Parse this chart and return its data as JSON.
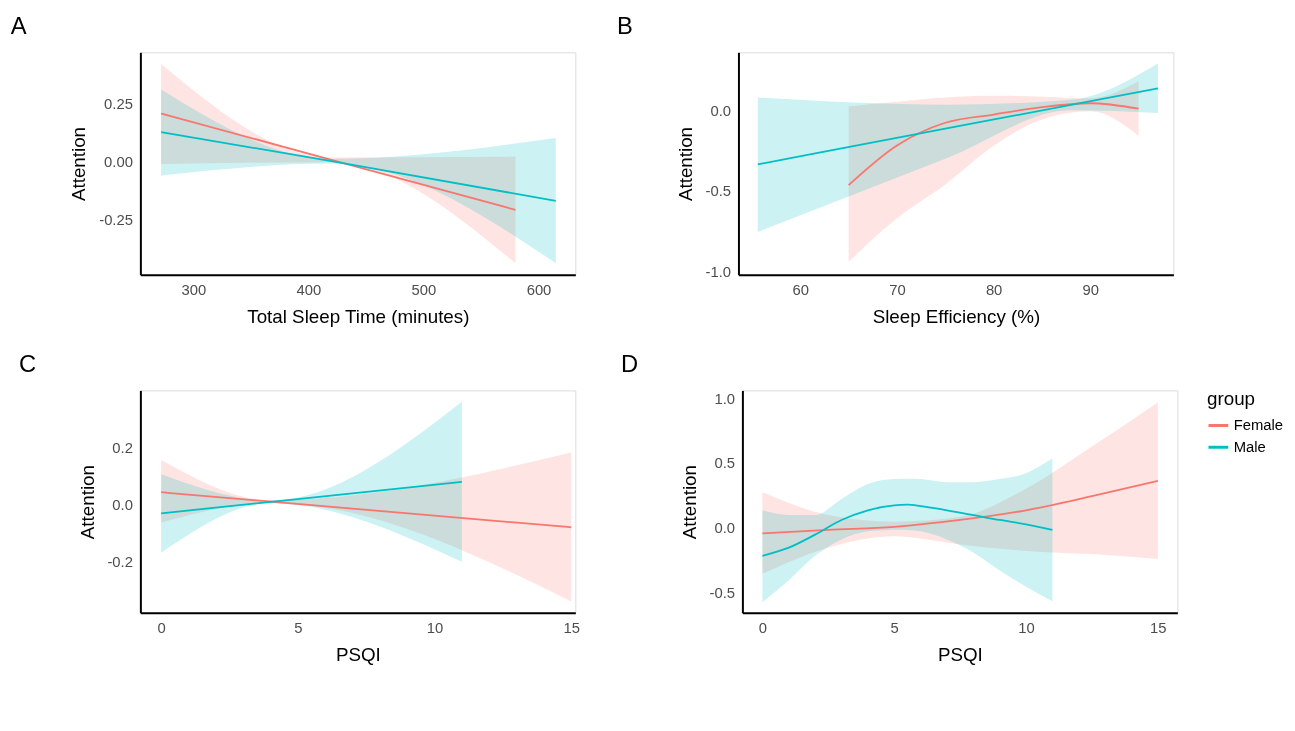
{
  "chart_data": [
    {
      "type": "line",
      "title": "A",
      "xlabel": "Total Sleep Time (minutes)",
      "ylabel": "Attention",
      "xlim": [
        254,
        632
      ],
      "xticks": [
        300,
        400,
        500,
        600
      ],
      "ylim": [
        -0.49,
        0.47
      ],
      "yticks": [
        {
          "value": -0.25,
          "label": "-0.25"
        },
        {
          "value": 0,
          "label": "0.00"
        },
        {
          "value": 0.25,
          "label": "0.25"
        }
      ],
      "grid": false,
      "legend": false,
      "series": [
        {
          "color": "#f8766d",
          "x": [
            272,
            420,
            580
          ],
          "values": [
            0.206,
            0.006,
            -0.21
          ],
          "lower": [
            -0.012,
            -0.004,
            -0.44
          ],
          "upper": [
            0.42,
            0.016,
            0.02
          ]
        },
        {
          "color": "#00bfc4",
          "x": [
            272,
            420,
            615
          ],
          "values": [
            0.126,
            0.0,
            -0.171
          ],
          "lower": [
            -0.062,
            -0.01,
            -0.44
          ],
          "upper": [
            0.31,
            0.01,
            0.1
          ]
        }
      ]
    },
    {
      "type": "line",
      "title": "B",
      "xlabel": "Sleep Efficiency (%)",
      "ylabel": "Attention",
      "xlim": [
        53.6,
        98.6
      ],
      "xticks": [
        60,
        70,
        80,
        90
      ],
      "ylim": [
        -1.02,
        0.36
      ],
      "yticks": [
        {
          "value": -1,
          "label": "-1.0"
        },
        {
          "value": -0.5,
          "label": "-0.5"
        },
        {
          "value": 0,
          "label": "0.0"
        }
      ],
      "grid": false,
      "legend": false,
      "series": [
        {
          "color": "#f8766d",
          "x": [
            65,
            70,
            75,
            80,
            85,
            90,
            95
          ],
          "values": [
            -0.464,
            -0.218,
            -0.077,
            -0.026,
            0.02,
            0.044,
            0.01
          ],
          "lower": [
            -0.94,
            -0.67,
            -0.46,
            -0.22,
            -0.056,
            -0.006,
            -0.157
          ],
          "upper": [
            0.024,
            0.054,
            0.08,
            0.09,
            0.085,
            0.075,
            0.18
          ]
        },
        {
          "color": "#00bfc4",
          "x": [
            55.6,
            75,
            88,
            97
          ],
          "values": [
            -0.335,
            -0.114,
            0.034,
            0.137
          ],
          "lower": [
            -0.754,
            -0.3,
            0.0,
            -0.016
          ],
          "upper": [
            0.079,
            0.035,
            0.065,
            0.29
          ]
        }
      ]
    },
    {
      "type": "line",
      "title": "C",
      "xlabel": "PSQI",
      "ylabel": "Attention",
      "xlim": [
        -0.76,
        15.15
      ],
      "xticks": [
        0,
        5,
        10,
        15
      ],
      "ylim": [
        -0.38,
        0.4
      ],
      "yticks": [
        {
          "value": -0.2,
          "label": "-0.2"
        },
        {
          "value": 0,
          "label": "0.0"
        },
        {
          "value": 0.2,
          "label": "0.2"
        }
      ],
      "grid": false,
      "legend": false,
      "series": [
        {
          "color": "#f8766d",
          "x": [
            0,
            4,
            15
          ],
          "values": [
            0.043,
            0.01,
            -0.08
          ],
          "lower": [
            -0.063,
            0.005,
            -0.34
          ],
          "upper": [
            0.156,
            0.015,
            0.182
          ]
        },
        {
          "color": "#00bfc4",
          "x": [
            0,
            4,
            11
          ],
          "values": [
            -0.031,
            0.009,
            0.079
          ],
          "lower": [
            -0.169,
            0.004,
            -0.201
          ],
          "upper": [
            0.106,
            0.014,
            0.36
          ]
        }
      ]
    },
    {
      "type": "line",
      "title": "D",
      "xlabel": "PSQI",
      "ylabel": "Attention",
      "legend_title": "group",
      "xlim": [
        -0.76,
        15.74
      ],
      "xticks": [
        0,
        5,
        10,
        15
      ],
      "ylim": [
        -0.66,
        1.06
      ],
      "yticks": [
        {
          "value": -0.5,
          "label": "-0.5"
        },
        {
          "value": 0,
          "label": "0.0"
        },
        {
          "value": 0.5,
          "label": "0.5"
        },
        {
          "value": 1,
          "label": "1.0"
        }
      ],
      "grid": false,
      "legend": "right",
      "series": [
        {
          "name": "Female",
          "color": "#f8766d",
          "x": [
            0,
            2.5,
            5,
            7.5,
            10,
            12.5,
            15
          ],
          "values": [
            -0.045,
            -0.018,
            0.005,
            0.058,
            0.133,
            0.242,
            0.36
          ],
          "lower": [
            -0.357,
            -0.156,
            -0.068,
            -0.131,
            -0.181,
            -0.206,
            -0.244
          ],
          "upper": [
            0.272,
            0.096,
            0.045,
            0.083,
            0.3,
            0.626,
            0.967
          ]
        },
        {
          "name": "Male",
          "color": "#00bfc4",
          "x": [
            0,
            1,
            2,
            3,
            4,
            5,
            5.5,
            6,
            7,
            8,
            9,
            10,
            11
          ],
          "values": [
            -0.219,
            -0.156,
            -0.055,
            0.058,
            0.133,
            0.171,
            0.176,
            0.166,
            0.133,
            0.096,
            0.058,
            0.025,
            -0.018
          ],
          "lower": [
            -0.579,
            -0.408,
            -0.219,
            -0.093,
            -0.03,
            -0.018,
            -0.02,
            -0.03,
            -0.093,
            -0.194,
            -0.332,
            -0.458,
            -0.571
          ],
          "upper": [
            0.133,
            0.096,
            0.096,
            0.221,
            0.336,
            0.374,
            0.376,
            0.374,
            0.35,
            0.35,
            0.374,
            0.42,
            0.536
          ]
        }
      ]
    }
  ]
}
